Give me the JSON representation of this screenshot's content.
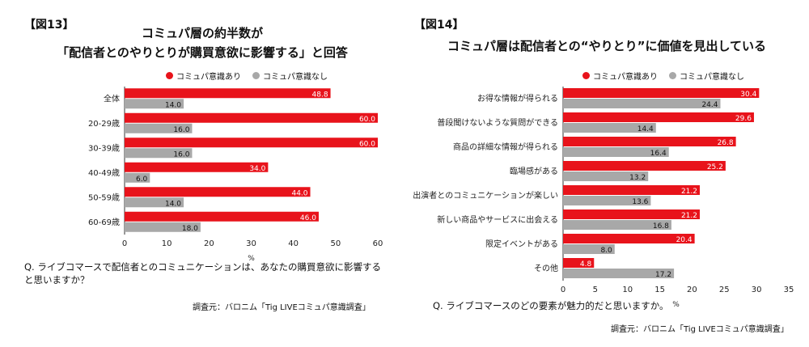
{
  "colors": {
    "with": "#e8131b",
    "without": "#a8a8a8",
    "axis": "#333333"
  },
  "chart_data": [
    {
      "type": "bar",
      "tag": "【図13】",
      "title_line1": "コミュパ層の約半数が",
      "title_line2": "「配信者とのやりとりが購買意欲に影響する」と回答",
      "legend": [
        "コミュパ意識あり",
        "コミュパ意識なし"
      ],
      "categories": [
        "全体",
        "20-29歳",
        "30-39歳",
        "40-49歳",
        "50-59歳",
        "60-69歳"
      ],
      "series": [
        {
          "name": "コミュパ意識あり",
          "values": [
            48.8,
            60.0,
            60.0,
            34.0,
            44.0,
            46.0
          ]
        },
        {
          "name": "コミュパ意識なし",
          "values": [
            14.0,
            16.0,
            16.0,
            6.0,
            14.0,
            18.0
          ]
        }
      ],
      "xlim": [
        0,
        60
      ],
      "xticks": [
        "0",
        "10",
        "20",
        "30",
        "40",
        "50",
        "60"
      ],
      "xlabel": "%",
      "question": "Q. ライブコマースで配信者とのコミュニケーションは、あなたの購買意欲に影響すると思いますか？",
      "source": "調査元：バロニム「Tig LIVEコミュパ意識調査」"
    },
    {
      "type": "bar",
      "tag": "【図14】",
      "title_line1": "コミュパ層は配信者との“やりとり”に価値を見出している",
      "legend": [
        "コミュパ意識あり",
        "コミュパ意識なし"
      ],
      "categories": [
        "お得な情報が得られる",
        "普段聞けないような質問ができる",
        "商品の詳細な情報が得られる",
        "臨場感がある",
        "出演者とのコミュニケーションが楽しい",
        "新しい商品やサービスに出会える",
        "限定イベントがある",
        "その他"
      ],
      "series": [
        {
          "name": "コミュパ意識あり",
          "values": [
            30.4,
            29.6,
            26.8,
            25.2,
            21.2,
            21.2,
            20.4,
            4.8
          ]
        },
        {
          "name": "コミュパ意識なし",
          "values": [
            24.4,
            14.4,
            16.4,
            13.2,
            13.6,
            16.8,
            8.0,
            17.2
          ]
        }
      ],
      "xlim": [
        0,
        35
      ],
      "xticks": [
        "0",
        "5",
        "10",
        "15",
        "20",
        "25",
        "30",
        "35"
      ],
      "xlabel": "%",
      "question": "Q. ライブコマースのどの要素が魅力的だと思いますか。",
      "source": "調査元：バロニム「Tig LIVEコミュパ意識調査」"
    }
  ]
}
